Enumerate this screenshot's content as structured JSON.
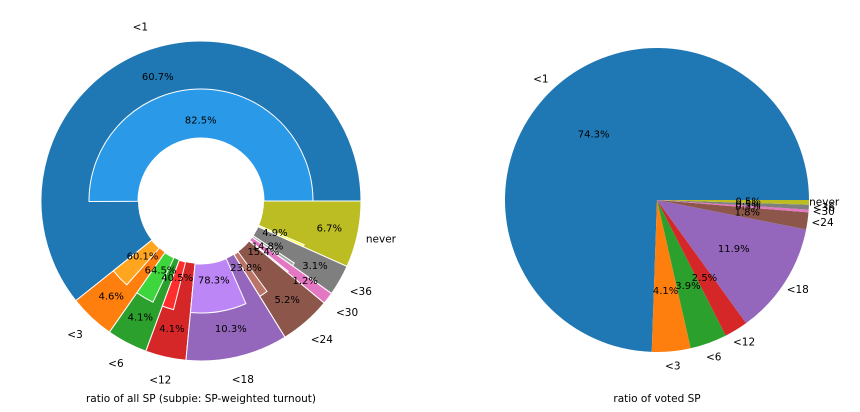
{
  "chart_data": [
    {
      "type": "pie",
      "variant": "nested-donut",
      "xlabel": "ratio of all SP (subpie: SP-weighted turnout)",
      "categories": [
        "<1",
        "<3",
        "<6",
        "<12",
        "<18",
        "<24",
        "<30",
        "<36",
        "never"
      ],
      "values": [
        60.7,
        4.6,
        4.1,
        4.1,
        10.3,
        5.2,
        1.2,
        3.1,
        6.7
      ],
      "labels": [
        "60.7%",
        "4.6%",
        "4.1%",
        "4.1%",
        "10.3%",
        "5.2%",
        "1.2%",
        "3.1%",
        "6.7%"
      ],
      "colors": [
        "#1f77b4",
        "#ff7f0e",
        "#2ca02c",
        "#d62728",
        "#9467bd",
        "#8c564b",
        "#e377c2",
        "#7f7f7f",
        "#bcbd22"
      ],
      "inner": {
        "turnout": [
          82.5,
          60.1,
          64.5,
          40.5,
          78.3,
          23.8,
          15.4,
          14.8,
          4.9
        ],
        "labels": [
          "82.5%",
          "60.1%",
          "64.5%",
          "40.5%",
          "78.3%",
          "23.8%",
          "15.4%",
          "14.8%",
          "4.9%"
        ],
        "colors": [
          "#2a9ae8",
          "#ffa51f",
          "#3dd63d",
          "#ff2e2e",
          "#bd86f7",
          "#ba7568",
          "#ff9eff",
          "#a8a8a8",
          "#ffff2e"
        ]
      }
    },
    {
      "type": "pie",
      "xlabel": "ratio of voted SP",
      "categories": [
        "<1",
        "<3",
        "<6",
        "<12",
        "<18",
        "<24",
        "<30",
        "<36",
        "never"
      ],
      "values": [
        74.3,
        4.1,
        3.9,
        2.5,
        11.9,
        1.8,
        0.3,
        0.5,
        0.5
      ],
      "labels": [
        "74.3%",
        "4.1%",
        "3.9%",
        "2.5%",
        "11.9%",
        "1.8%",
        "0.3%",
        "0.5%",
        "0.5%"
      ],
      "colors": [
        "#1f77b4",
        "#ff7f0e",
        "#2ca02c",
        "#d62728",
        "#9467bd",
        "#8c564b",
        "#e377c2",
        "#7f7f7f",
        "#bcbd22"
      ]
    }
  ]
}
